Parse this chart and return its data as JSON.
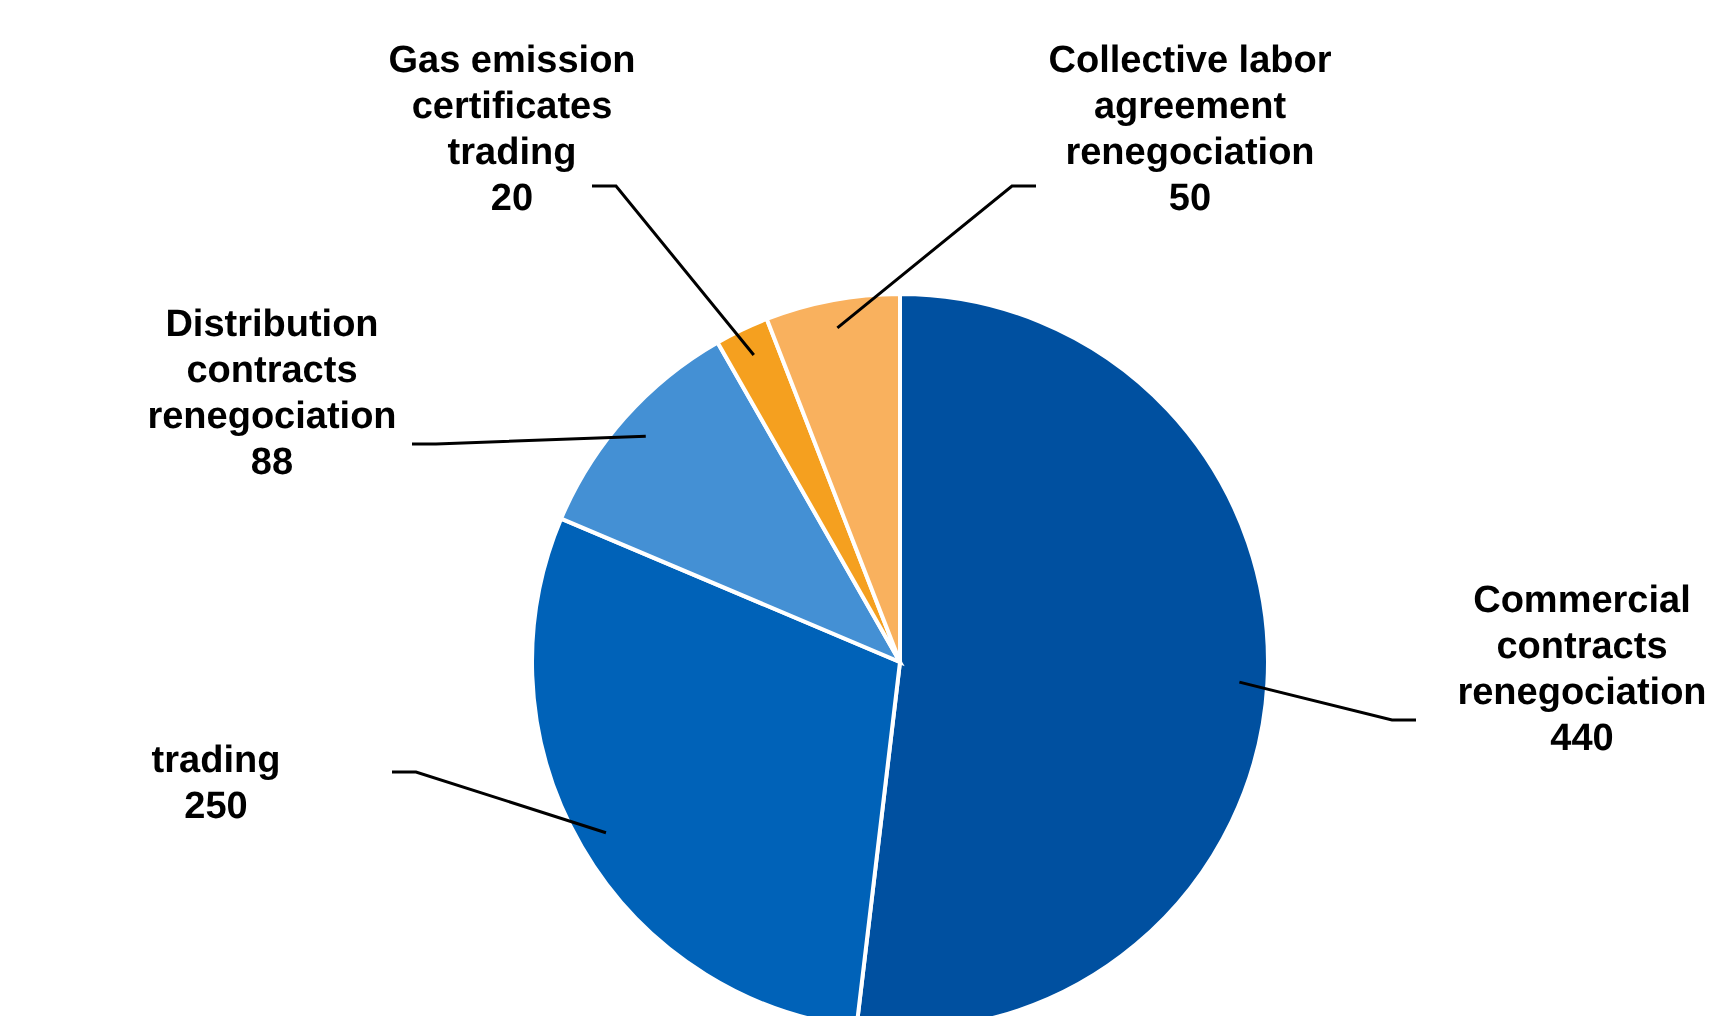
{
  "chart_data": {
    "type": "pie",
    "categories": [
      "Commercial contracts renegociation",
      "trading",
      "Distribution contracts renegociation",
      "Gas emission certificates trading",
      "Collective labor agreement renegociation"
    ],
    "values": [
      440,
      250,
      88,
      20,
      50
    ],
    "colors": [
      "#0050a0",
      "#0062b8",
      "#4490d4",
      "#f5a01f",
      "#f9b15e"
    ],
    "data_labels": true
  }
}
